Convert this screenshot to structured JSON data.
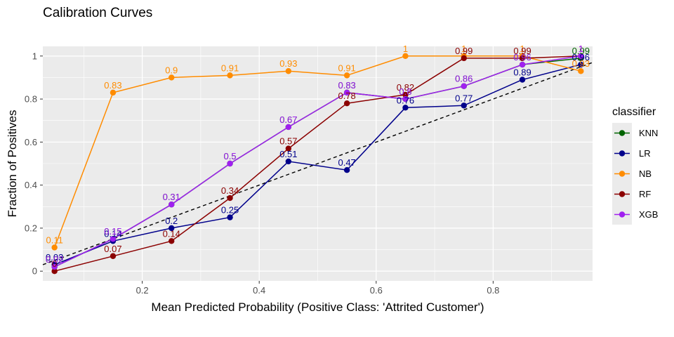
{
  "chart_data": {
    "type": "line",
    "title": "Calibration Curves",
    "xlabel": "Mean Predicted Probability (Positive Class: 'Attrited Customer')",
    "ylabel": "Fraction of Positives",
    "xlim": [
      0.03,
      0.97
    ],
    "ylim": [
      -0.045,
      1.045
    ],
    "xticks": [
      0.2,
      0.4,
      0.6,
      0.8
    ],
    "xtick_labels": [
      "0.2",
      "0.4",
      "0.6",
      "0.8"
    ],
    "yticks": [
      0,
      0.2,
      0.4,
      0.6,
      0.8,
      1
    ],
    "ytick_labels": [
      "0",
      "0.2",
      "0.4",
      "0.6",
      "0.8",
      "1"
    ],
    "grid": true,
    "legend_title": "classifier",
    "legend_position": "right",
    "reference_line": {
      "style": "dashed",
      "color": "#000000",
      "from": [
        0,
        0
      ],
      "to": [
        1,
        1
      ]
    },
    "series": [
      {
        "name": "KNN",
        "color": "#006400",
        "x": [
          0.05,
          0.15,
          0.25,
          0.35,
          0.45,
          0.55,
          0.65,
          0.75,
          0.85,
          0.95
        ],
        "y": [
          0.02,
          0.15,
          0.31,
          0.5,
          0.67,
          0.83,
          0.8,
          0.86,
          0.96,
          0.99
        ],
        "labels": [
          "0.02",
          "0.15",
          "0.31",
          "0.5",
          "0.67",
          "0.83",
          "0.8",
          "0.86",
          "0.96",
          "0.99"
        ]
      },
      {
        "name": "LR",
        "color": "#00008B",
        "x": [
          0.05,
          0.15,
          0.25,
          0.35,
          0.45,
          0.55,
          0.65,
          0.75,
          0.85,
          0.95
        ],
        "y": [
          0.03,
          0.14,
          0.2,
          0.25,
          0.51,
          0.47,
          0.76,
          0.77,
          0.89,
          0.96
        ],
        "labels": [
          "0.03",
          "0.14",
          "0.2",
          "0.25",
          "0.51",
          "0.47",
          "0.76",
          "0.77",
          "0.89",
          "0.96"
        ]
      },
      {
        "name": "NB",
        "color": "#FF8C00",
        "x": [
          0.05,
          0.15,
          0.25,
          0.35,
          0.45,
          0.55,
          0.65,
          0.75,
          0.85,
          0.95
        ],
        "y": [
          0.11,
          0.83,
          0.9,
          0.91,
          0.93,
          0.91,
          1,
          1,
          1,
          0.93
        ],
        "labels": [
          "0.11",
          "0.83",
          "0.9",
          "0.91",
          "0.93",
          "0.91",
          "1",
          "1",
          "1",
          "0.93"
        ]
      },
      {
        "name": "RF",
        "color": "#8B0000",
        "x": [
          0.05,
          0.15,
          0.25,
          0.35,
          0.45,
          0.55,
          0.65,
          0.75,
          0.85,
          0.95
        ],
        "y": [
          0,
          0.07,
          0.14,
          0.34,
          0.57,
          0.78,
          0.82,
          0.99,
          0.99,
          1
        ],
        "labels": [
          "0",
          "0.07",
          "0.14",
          "0.34",
          "0.57",
          "0.78",
          "0.82",
          "0.99",
          "0.99",
          "1"
        ]
      },
      {
        "name": "XGB",
        "color": "#A020F0",
        "x": [
          0.05,
          0.15,
          0.25,
          0.35,
          0.45,
          0.55,
          0.65,
          0.75,
          0.85,
          0.95
        ],
        "y": [
          0.02,
          0.15,
          0.31,
          0.5,
          0.67,
          0.83,
          0.8,
          0.86,
          0.96,
          1
        ],
        "labels": [
          "0.02",
          "0.15",
          "0.31",
          "0.5",
          "0.67",
          "0.83",
          "0.8",
          "0.86",
          "0.96",
          "1"
        ]
      }
    ]
  }
}
